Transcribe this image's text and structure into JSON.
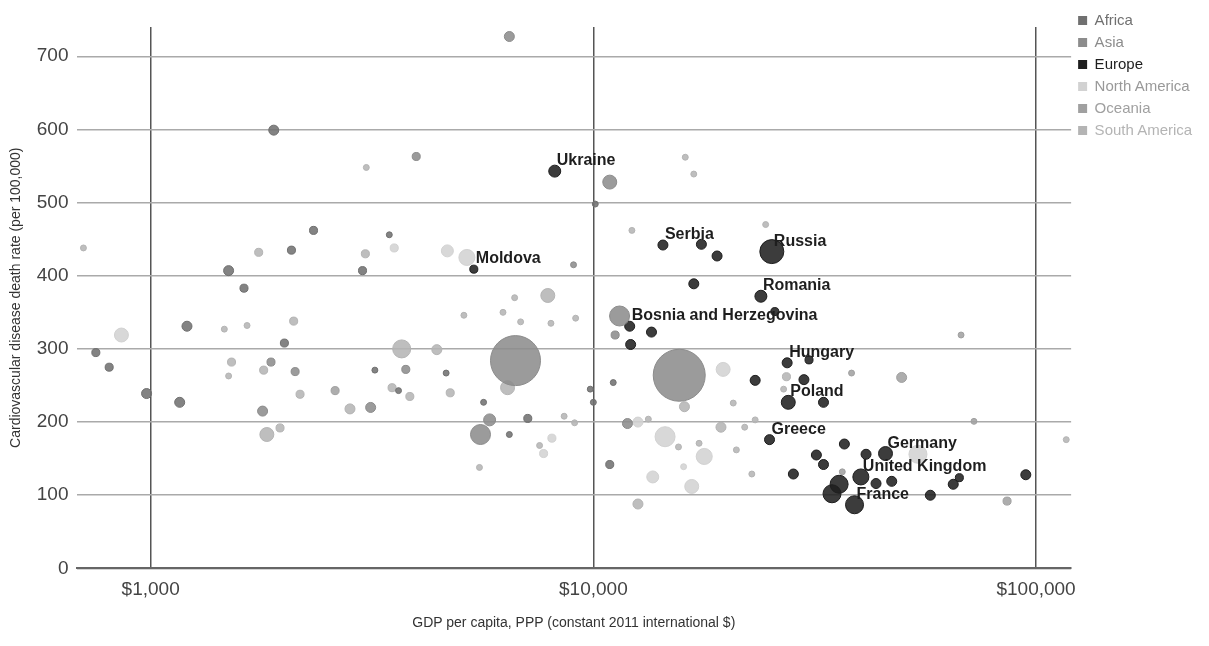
{
  "chart_data": {
    "type": "bubble",
    "xlabel": "GDP per capita, PPP (constant 2011 international $)",
    "ylabel": "Cardiovascular disease death rate (per 100,000)",
    "log": "x",
    "xlim": [
      680,
      120000
    ],
    "xticks": [
      {
        "value": 1000,
        "label": "$1,000"
      },
      {
        "value": 10000,
        "label": "$10,000"
      },
      {
        "value": 100000,
        "label": "$100,000"
      }
    ],
    "ylim": [
      0,
      740
    ],
    "yticks": [
      0,
      100,
      200,
      300,
      400,
      500,
      600,
      700
    ],
    "grid": true,
    "legend": "top right",
    "marker": "circle",
    "series": [
      {
        "name": "Africa",
        "color": "#707070",
        "x": [
          1897,
          2333,
          2080,
          1500,
          1625,
          3010,
          752,
          806,
          979,
          1163,
          3210,
          4650,
          9840,
          10000,
          11090,
          6460,
          10890,
          10100,
          3460,
          1208,
          2005,
          3630,
          5650,
          7110
        ],
        "values": [
          599,
          462,
          435,
          407,
          383,
          407,
          295,
          275,
          239,
          227,
          271,
          267,
          245,
          227,
          254,
          183,
          142,
          498,
          456,
          331,
          308,
          243,
          227,
          205
        ],
        "sizes": [
          0.037,
          0.024,
          0.024,
          0.037,
          0.024,
          0.024,
          0.024,
          0.024,
          0.037,
          0.037,
          0.013,
          0.013,
          0.013,
          0.013,
          0.013,
          0.013,
          0.024,
          0.013,
          0.013,
          0.037,
          0.024,
          0.013,
          0.013,
          0.024
        ]
      },
      {
        "name": "Asia",
        "color": "#8c8c8c",
        "x": [
          6460,
          10890,
          11460,
          5560,
          6670,
          15630,
          5830,
          11940,
          3980,
          9020,
          11200,
          1790,
          2120,
          3770,
          1870,
          3140
        ],
        "values": [
          727,
          528,
          345,
          183,
          284,
          264,
          203,
          198,
          563,
          415,
          319,
          215,
          269,
          272,
          282,
          220
        ],
        "sizes": [
          0.037,
          0.072,
          0.148,
          0.148,
          0.925,
          1,
          0.053,
          0.037,
          0.024,
          0.013,
          0.024,
          0.037,
          0.024,
          0.024,
          0.024,
          0.037
        ]
      },
      {
        "name": "Europe",
        "color": "#1e1e1e",
        "x": [
          8180,
          5370,
          14360,
          17540,
          19030,
          25300,
          16860,
          23900,
          25700,
          12080,
          13530,
          12140,
          23200,
          27400,
          30700,
          29900,
          27560,
          33100,
          25000,
          36900,
          31900,
          33100,
          28300,
          41300,
          45700,
          40200,
          35900,
          34600,
          38900,
          47200,
          43500,
          57700,
          65000,
          67100,
          94800
        ],
        "values": [
          543,
          409,
          442,
          443,
          427,
          433,
          389,
          372,
          351,
          331,
          323,
          306,
          257,
          281,
          285,
          258,
          227,
          227,
          176,
          170,
          155,
          142,
          129,
          156,
          157,
          125,
          115,
          102,
          87,
          119,
          116,
          100,
          115,
          124,
          128
        ],
        "sizes": [
          0.053,
          0.024,
          0.037,
          0.037,
          0.037,
          0.213,
          0.037,
          0.053,
          0.024,
          0.037,
          0.037,
          0.037,
          0.037,
          0.037,
          0.024,
          0.037,
          0.072,
          0.037,
          0.037,
          0.037,
          0.037,
          0.037,
          0.037,
          0.037,
          0.072,
          0.095,
          0.12,
          0.12,
          0.12,
          0.037,
          0.037,
          0.037,
          0.037,
          0.024,
          0.037
        ]
      },
      {
        "name": "North America",
        "color": "#d2d2d2",
        "x": [
          54100,
          4680,
          5180,
          14520,
          17800,
          16680,
          12610,
          8060,
          7720,
          859,
          3550,
          15990,
          19640,
          13620
        ],
        "values": [
          156,
          434,
          425,
          180,
          153,
          112,
          200,
          178,
          157,
          319,
          438,
          139,
          272,
          125
        ],
        "sizes": [
          0.12,
          0.053,
          0.095,
          0.148,
          0.095,
          0.072,
          0.037,
          0.024,
          0.024,
          0.072,
          0.024,
          0.013,
          0.072,
          0.053
        ]
      },
      {
        "name": "Oceania",
        "color": "#a0a0a0",
        "x": [
          38300,
          49700,
          67700,
          86000,
          72400,
          2610,
          36500
        ],
        "values": [
          267,
          261,
          319,
          92,
          201,
          243,
          132
        ],
        "sizes": [
          0.013,
          0.037,
          0.013,
          0.024,
          0.013,
          0.024,
          0.013
        ]
      },
      {
        "name": "South America",
        "color": "#b4b4b4",
        "x": [
          3070,
          705,
          1754,
          3055,
          1467,
          1651,
          2104,
          1523,
          1500,
          1800,
          2175,
          1830,
          1960,
          2820,
          3510,
          3850,
          3690,
          4430,
          4750,
          5100,
          5530,
          16130,
          16860,
          12220,
          6640,
          7890,
          24500,
          6250,
          6850,
          8020,
          9120,
          6400,
          16060,
          20700,
          7560,
          8590,
          9070,
          13310,
          15570,
          17330,
          12610,
          19420,
          21970,
          23200,
          21040,
          22800,
          27300,
          26900,
          117000
        ],
        "values": [
          548,
          438,
          432,
          430,
          327,
          332,
          338,
          282,
          263,
          271,
          238,
          183,
          192,
          218,
          247,
          235,
          300,
          299,
          240,
          346,
          138,
          562,
          539,
          462,
          370,
          373,
          470,
          350,
          337,
          335,
          342,
          247,
          221,
          226,
          168,
          208,
          199,
          204,
          166,
          171,
          88,
          193,
          193,
          203,
          162,
          129,
          262,
          245,
          176
        ],
        "sizes": [
          0.013,
          0.013,
          0.024,
          0.024,
          0.013,
          0.013,
          0.024,
          0.024,
          0.013,
          0.024,
          0.024,
          0.072,
          0.024,
          0.037,
          0.024,
          0.024,
          0.12,
          0.037,
          0.024,
          0.013,
          0.013,
          0.013,
          0.013,
          0.013,
          0.013,
          0.072,
          0.013,
          0.013,
          0.013,
          0.013,
          0.013,
          0.072,
          0.037,
          0.013,
          0.013,
          0.013,
          0.013,
          0.013,
          0.013,
          0.013,
          0.037,
          0.037,
          0.013,
          0.013,
          0.013,
          0.013,
          0.024,
          0.013,
          0.013
        ]
      }
    ],
    "annotations": [
      {
        "text": "Ukraine",
        "x": 8180,
        "y": 543
      },
      {
        "text": "Moldova",
        "x": 5370,
        "y": 409
      },
      {
        "text": "Serbia",
        "x": 14360,
        "y": 442
      },
      {
        "text": "Russia",
        "x": 25300,
        "y": 433
      },
      {
        "text": "Romania",
        "x": 23900,
        "y": 372
      },
      {
        "text": "Bosnia and Herzegovina",
        "x": 12080,
        "y": 331
      },
      {
        "text": "Hungary",
        "x": 27400,
        "y": 281
      },
      {
        "text": "Poland",
        "x": 27560,
        "y": 227
      },
      {
        "text": "Greece",
        "x": 25000,
        "y": 176
      },
      {
        "text": "Germany",
        "x": 45700,
        "y": 157
      },
      {
        "text": "United Kingdom",
        "x": 40200,
        "y": 125
      },
      {
        "text": "France",
        "x": 38900,
        "y": 87
      }
    ]
  }
}
